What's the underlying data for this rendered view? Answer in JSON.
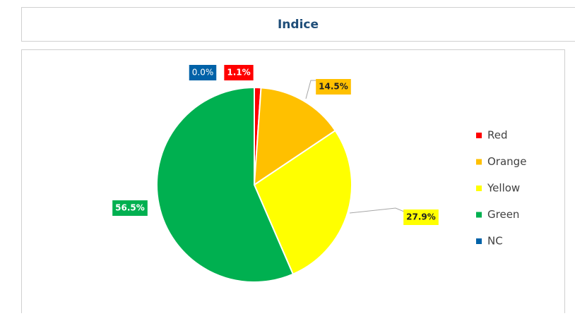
{
  "chart_data": {
    "type": "pie",
    "title": "Indice",
    "categories": [
      "Red",
      "Orange",
      "Yellow",
      "Green",
      "NC"
    ],
    "values": [
      1.1,
      14.5,
      27.9,
      56.5,
      0.0
    ],
    "value_labels": [
      "1.1%",
      "14.5%",
      "27.9%",
      "56.5%",
      "0.0%"
    ],
    "colors": [
      "#ff0000",
      "#ffc000",
      "#ffff00",
      "#00b050",
      "#0062a8"
    ],
    "legend": "right"
  }
}
